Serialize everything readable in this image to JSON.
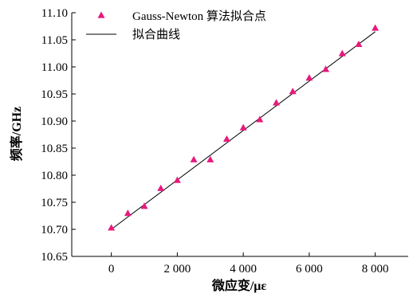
{
  "chart_data": {
    "type": "scatter",
    "xlabel": "微应变/με",
    "ylabel": "频率/GHz",
    "xlim": [
      -1200,
      9000
    ],
    "ylim": [
      10.65,
      11.1
    ],
    "x_ticks": [
      0,
      2000,
      4000,
      6000,
      8000
    ],
    "x_tick_labels": [
      "0",
      "2 000",
      "4 000",
      "6 000",
      "8 000"
    ],
    "y_ticks": [
      10.65,
      10.7,
      10.75,
      10.8,
      10.85,
      10.9,
      10.95,
      11.0,
      11.05,
      11.1
    ],
    "y_tick_labels": [
      "10.65",
      "10.70",
      "10.75",
      "10.80",
      "10.85",
      "10.90",
      "10.95",
      "11.00",
      "11.05",
      "11.10"
    ],
    "grid": false,
    "legend_position": "top-left",
    "series": [
      {
        "name": "Gauss-Newton 算法拟合点",
        "marker": "triangle",
        "color": "#e8197d",
        "x": [
          0,
          500,
          1000,
          1500,
          2000,
          2500,
          3000,
          3500,
          4000,
          4500,
          5000,
          5500,
          6000,
          6500,
          7000,
          7500,
          8000
        ],
        "y": [
          10.703,
          10.73,
          10.743,
          10.776,
          10.791,
          10.829,
          10.829,
          10.867,
          10.888,
          10.903,
          10.934,
          10.955,
          10.98,
          10.996,
          11.025,
          11.042,
          11.072
        ]
      },
      {
        "name": "拟合曲线",
        "marker": "line",
        "color": "#000000",
        "x": [
          0,
          8000
        ],
        "y": [
          10.7,
          11.065
        ]
      }
    ]
  }
}
